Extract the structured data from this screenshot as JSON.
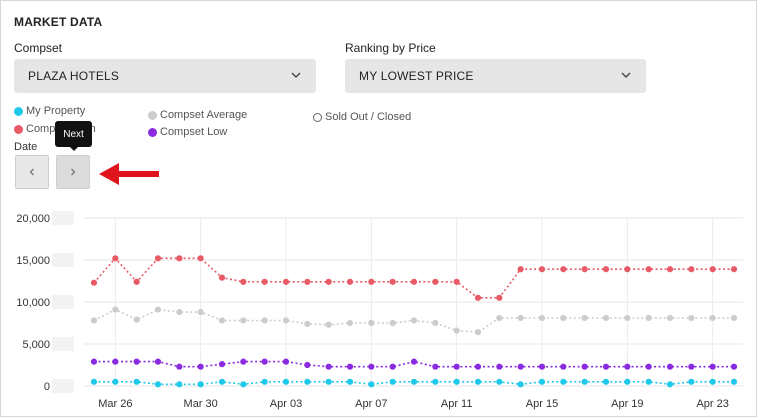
{
  "panel": {
    "title": "MARKET DATA"
  },
  "compset": {
    "label": "Compset",
    "value": "PLAZA HOTELS"
  },
  "ranking": {
    "label": "Ranking by Price",
    "value": "MY LOWEST PRICE"
  },
  "legend": [
    {
      "label": "My Property",
      "color": "#1ec8e8",
      "style": "filled"
    },
    {
      "label": "Compset High",
      "color": "#e85a66",
      "style": "filled"
    },
    {
      "label": "Compset Average",
      "color": "#cccccc",
      "style": "filled"
    },
    {
      "label": "Compset Low",
      "color": "#8a2be2",
      "style": "filled"
    },
    {
      "label": "Sold Out / Closed",
      "color": "#666666",
      "style": "hollow"
    }
  ],
  "date_nav": {
    "label": "Date",
    "prev_icon": "chevron-left-icon",
    "next_icon": "chevron-right-icon",
    "tooltip": "Next"
  },
  "annotation": {
    "icon": "red-arrow-left-icon",
    "color": "#e0141c"
  },
  "chart_data": {
    "type": "line",
    "x": [
      "Mar 25",
      "Mar 26",
      "Mar 27",
      "Mar 28",
      "Mar 29",
      "Mar 30",
      "Mar 31",
      "Apr 01",
      "Apr 02",
      "Apr 03",
      "Apr 04",
      "Apr 05",
      "Apr 06",
      "Apr 07",
      "Apr 08",
      "Apr 09",
      "Apr 10",
      "Apr 11",
      "Apr 12",
      "Apr 13",
      "Apr 14",
      "Apr 15",
      "Apr 16",
      "Apr 17",
      "Apr 18",
      "Apr 19",
      "Apr 20",
      "Apr 21",
      "Apr 22",
      "Apr 23",
      "Apr 24"
    ],
    "x_ticks": [
      "Mar 26",
      "Mar 30",
      "Apr 03",
      "Apr 07",
      "Apr 11",
      "Apr 15",
      "Apr 19",
      "Apr 23"
    ],
    "y_ticks": [
      "0",
      "5,000",
      "10,000",
      "15,000",
      "20,000"
    ],
    "ylim": [
      0,
      20000
    ],
    "grid": true,
    "series": [
      {
        "name": "Compset High",
        "color": "#e85a66",
        "values": [
          12300,
          15200,
          12400,
          15200,
          15200,
          15200,
          12900,
          12400,
          12400,
          12400,
          12400,
          12400,
          12400,
          12400,
          12400,
          12400,
          12400,
          12400,
          10500,
          10500,
          13900,
          13900,
          13900,
          13900,
          13900,
          13900,
          13900,
          13900,
          13900,
          13900,
          13900
        ]
      },
      {
        "name": "Compset Average",
        "color": "#cccccc",
        "values": [
          7800,
          9100,
          7900,
          9100,
          8800,
          8800,
          7800,
          7800,
          7800,
          7800,
          7400,
          7300,
          7500,
          7500,
          7500,
          7800,
          7500,
          6600,
          6400,
          8100,
          8100,
          8100,
          8100,
          8100,
          8100,
          8100,
          8100,
          8100,
          8100,
          8100,
          8100
        ]
      },
      {
        "name": "Compset Low",
        "color": "#8a2be2",
        "values": [
          2900,
          2900,
          2900,
          2900,
          2300,
          2300,
          2600,
          2900,
          2900,
          2900,
          2500,
          2300,
          2300,
          2300,
          2300,
          2900,
          2300,
          2300,
          2300,
          2300,
          2300,
          2300,
          2300,
          2300,
          2300,
          2300,
          2300,
          2300,
          2300,
          2300,
          2300
        ]
      },
      {
        "name": "My Property",
        "color": "#1ec8e8",
        "values": [
          500,
          500,
          500,
          200,
          200,
          200,
          500,
          200,
          500,
          500,
          500,
          500,
          500,
          200,
          500,
          500,
          500,
          500,
          500,
          500,
          200,
          500,
          500,
          500,
          500,
          500,
          500,
          200,
          500,
          500,
          500
        ]
      }
    ]
  }
}
